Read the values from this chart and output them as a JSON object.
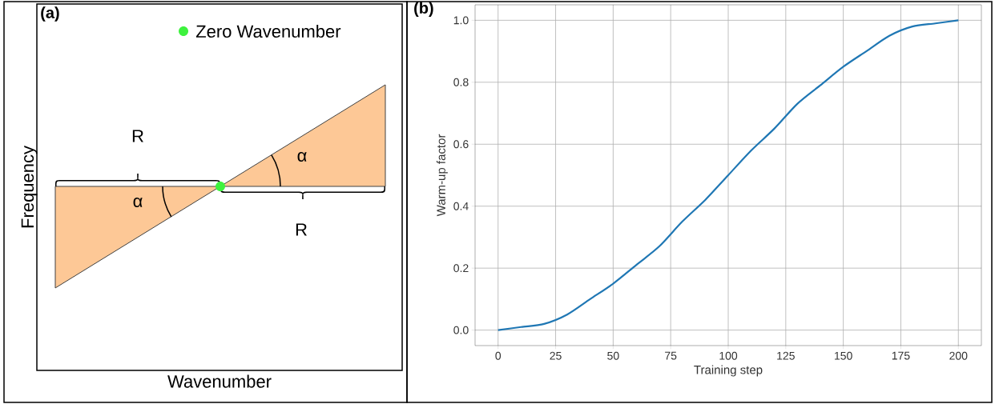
{
  "chart_data": [
    {
      "type": "other",
      "title": "(a)",
      "xlabel": "Wavenumber",
      "ylabel": "Frequency",
      "annotations": [
        "Zero Wavenumber",
        "R",
        "R",
        "α",
        "α"
      ]
    },
    {
      "type": "line",
      "title": "(b)",
      "xlabel": "Training step",
      "ylabel": "Warm-up factor",
      "x": [
        0,
        10,
        20,
        30,
        40,
        50,
        60,
        70,
        80,
        90,
        100,
        110,
        120,
        130,
        140,
        150,
        160,
        170,
        180,
        190,
        200
      ],
      "series": [
        {
          "color": "#1f77b4",
          "values": [
            0.0,
            0.01,
            0.02,
            0.05,
            0.1,
            0.15,
            0.21,
            0.27,
            0.35,
            0.42,
            0.5,
            0.58,
            0.65,
            0.73,
            0.79,
            0.85,
            0.9,
            0.95,
            0.98,
            0.99,
            1.0
          ]
        }
      ],
      "xlim": [
        -10,
        210
      ],
      "ylim": [
        -0.05,
        1.05
      ],
      "xticks": [
        0,
        25,
        50,
        75,
        100,
        125,
        150,
        175,
        200
      ],
      "yticks": [
        {
          "value": 0,
          "label": "0.0"
        },
        0.2,
        0.4,
        0.6,
        0.8,
        {
          "value": 1,
          "label": "1.0"
        }
      ],
      "grid": true,
      "marker": "none",
      "line_style": "solid"
    }
  ]
}
